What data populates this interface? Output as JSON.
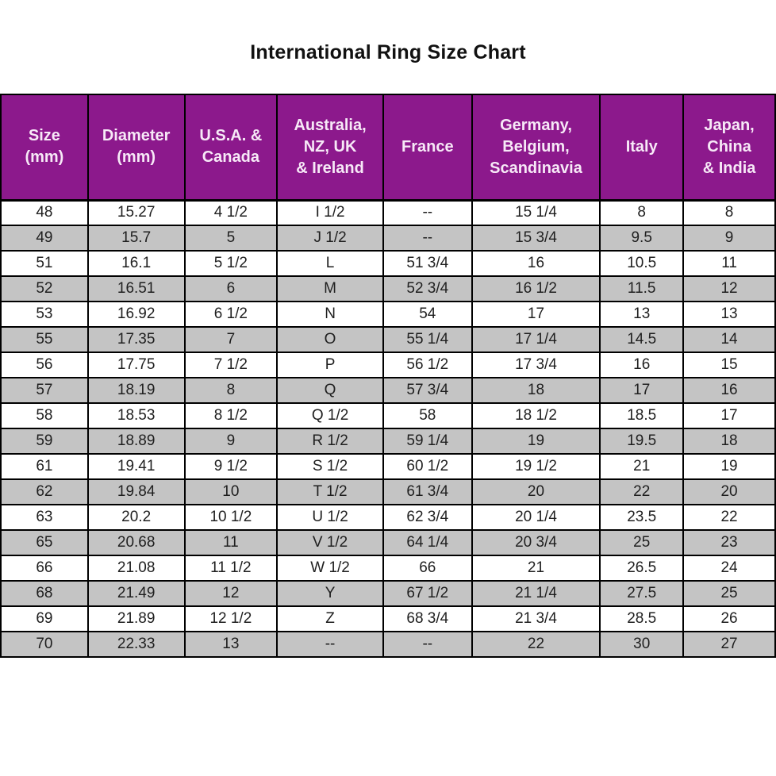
{
  "title": "International Ring Size Chart",
  "colors": {
    "header_bg": "#8c198c",
    "header_text": "#f7e9f7",
    "zebra_row_bg": "#c4c4c4",
    "row_bg": "#ffffff",
    "border": "#000000",
    "text": "#1f1f1f",
    "title_text": "#111111"
  },
  "table": {
    "header_lines": [
      "Size\n(mm)",
      "Diameter\n(mm)",
      "U.S.A. &\nCanada",
      "Australia,\nNZ, UK\n& Ireland",
      "France",
      "Germany,\nBelgium,\nScandinavia",
      "Italy",
      "Japan,\nChina\n& India"
    ]
  },
  "chart_data": {
    "type": "table",
    "title": "International Ring Size Chart",
    "columns": [
      "Size (mm)",
      "Diameter (mm)",
      "U.S.A. & Canada",
      "Australia, NZ, UK & Ireland",
      "France",
      "Germany, Belgium, Scandinavia",
      "Italy",
      "Japan, China & India"
    ],
    "rows": [
      [
        "48",
        "15.27",
        "4 1/2",
        "I 1/2",
        "--",
        "15 1/4",
        "8",
        "8"
      ],
      [
        "49",
        "15.7",
        "5",
        "J 1/2",
        "--",
        "15 3/4",
        "9.5",
        "9"
      ],
      [
        "51",
        "16.1",
        "5 1/2",
        "L",
        "51 3/4",
        "16",
        "10.5",
        "11"
      ],
      [
        "52",
        "16.51",
        "6",
        "M",
        "52 3/4",
        "16 1/2",
        "11.5",
        "12"
      ],
      [
        "53",
        "16.92",
        "6 1/2",
        "N",
        "54",
        "17",
        "13",
        "13"
      ],
      [
        "55",
        "17.35",
        "7",
        "O",
        "55 1/4",
        "17 1/4",
        "14.5",
        "14"
      ],
      [
        "56",
        "17.75",
        "7 1/2",
        "P",
        "56 1/2",
        "17 3/4",
        "16",
        "15"
      ],
      [
        "57",
        "18.19",
        "8",
        "Q",
        "57 3/4",
        "18",
        "17",
        "16"
      ],
      [
        "58",
        "18.53",
        "8 1/2",
        "Q 1/2",
        "58",
        "18 1/2",
        "18.5",
        "17"
      ],
      [
        "59",
        "18.89",
        "9",
        "R 1/2",
        "59 1/4",
        "19",
        "19.5",
        "18"
      ],
      [
        "61",
        "19.41",
        "9 1/2",
        "S 1/2",
        "60 1/2",
        "19 1/2",
        "21",
        "19"
      ],
      [
        "62",
        "19.84",
        "10",
        "T 1/2",
        "61 3/4",
        "20",
        "22",
        "20"
      ],
      [
        "63",
        "20.2",
        "10 1/2",
        "U 1/2",
        "62 3/4",
        "20 1/4",
        "23.5",
        "22"
      ],
      [
        "65",
        "20.68",
        "11",
        "V 1/2",
        "64 1/4",
        "20 3/4",
        "25",
        "23"
      ],
      [
        "66",
        "21.08",
        "11 1/2",
        "W 1/2",
        "66",
        "21",
        "26.5",
        "24"
      ],
      [
        "68",
        "21.49",
        "12",
        "Y",
        "67 1/2",
        "21 1/4",
        "27.5",
        "25"
      ],
      [
        "69",
        "21.89",
        "12 1/2",
        "Z",
        "68 3/4",
        "21 3/4",
        "28.5",
        "26"
      ],
      [
        "70",
        "22.33",
        "13",
        "--",
        "--",
        "22",
        "30",
        "27"
      ]
    ]
  }
}
